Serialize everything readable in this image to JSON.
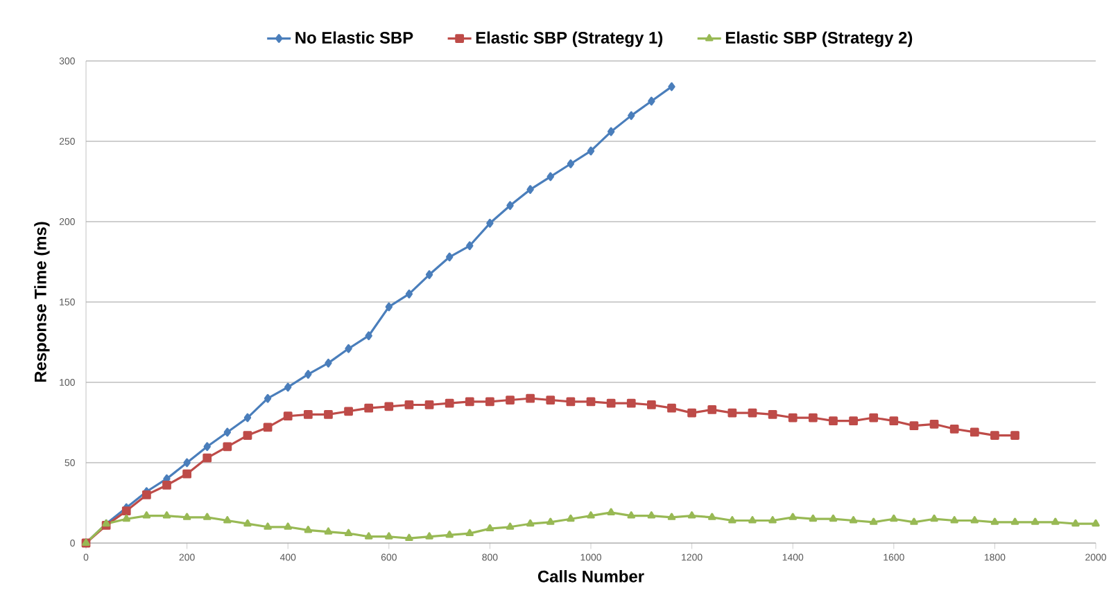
{
  "chart_data": {
    "type": "line",
    "xlabel": "Calls Number",
    "ylabel": "Response Time (ms)",
    "xlim": [
      0,
      2000
    ],
    "xticks": [
      0,
      200,
      400,
      600,
      800,
      1000,
      1200,
      1400,
      1600,
      1800,
      2000
    ],
    "ylim": [
      0,
      300
    ],
    "yticks": [
      0,
      50,
      100,
      150,
      200,
      250,
      300
    ],
    "grid": "y",
    "legend": "top",
    "line_style": "solid",
    "series": [
      {
        "name": "No Elastic SBP",
        "color": "#4a7ebb",
        "marker": "diamond",
        "x": [
          0,
          40,
          80,
          120,
          160,
          200,
          240,
          280,
          320,
          360,
          400,
          440,
          480,
          520,
          560,
          600,
          640,
          680,
          720,
          760,
          800,
          840,
          880,
          920,
          960,
          1000,
          1040,
          1080,
          1120,
          1160
        ],
        "values": [
          0,
          12,
          22,
          32,
          40,
          50,
          60,
          69,
          78,
          90,
          97,
          105,
          112,
          121,
          129,
          147,
          155,
          167,
          178,
          185,
          199,
          210,
          220,
          228,
          236,
          244,
          256,
          266,
          275,
          284
        ]
      },
      {
        "name": "Elastic SBP (Strategy 1)",
        "color": "#be4b48",
        "marker": "square",
        "x": [
          0,
          40,
          80,
          120,
          160,
          200,
          240,
          280,
          320,
          360,
          400,
          440,
          480,
          520,
          560,
          600,
          640,
          680,
          720,
          760,
          800,
          840,
          880,
          920,
          960,
          1000,
          1040,
          1080,
          1120,
          1160,
          1200,
          1240,
          1280,
          1320,
          1360,
          1400,
          1440,
          1480,
          1520,
          1560,
          1600,
          1640,
          1680,
          1720,
          1760,
          1800,
          1840
        ],
        "values": [
          0,
          11,
          20,
          30,
          36,
          43,
          53,
          60,
          67,
          72,
          79,
          80,
          80,
          82,
          84,
          85,
          86,
          86,
          87,
          88,
          88,
          89,
          90,
          89,
          88,
          88,
          87,
          87,
          86,
          84,
          81,
          83,
          81,
          81,
          80,
          78,
          78,
          76,
          76,
          78,
          76,
          73,
          74,
          71,
          69,
          67,
          67
        ]
      },
      {
        "name": "Elastic SBP (Strategy 2)",
        "color": "#98b954",
        "marker": "triangle",
        "x": [
          0,
          40,
          80,
          120,
          160,
          200,
          240,
          280,
          320,
          360,
          400,
          440,
          480,
          520,
          560,
          600,
          640,
          680,
          720,
          760,
          800,
          840,
          880,
          920,
          960,
          1000,
          1040,
          1080,
          1120,
          1160,
          1200,
          1240,
          1280,
          1320,
          1360,
          1400,
          1440,
          1480,
          1520,
          1560,
          1600,
          1640,
          1680,
          1720,
          1760,
          1800,
          1840,
          1880,
          1920,
          1960,
          2000
        ],
        "values": [
          0,
          12,
          15,
          17,
          17,
          16,
          16,
          14,
          12,
          10,
          10,
          8,
          7,
          6,
          4,
          4,
          3,
          4,
          5,
          6,
          9,
          10,
          12,
          13,
          15,
          17,
          19,
          17,
          17,
          16,
          17,
          16,
          14,
          14,
          14,
          16,
          15,
          15,
          14,
          13,
          15,
          13,
          15,
          14,
          14,
          13,
          13,
          13,
          13,
          12,
          12
        ]
      }
    ]
  }
}
